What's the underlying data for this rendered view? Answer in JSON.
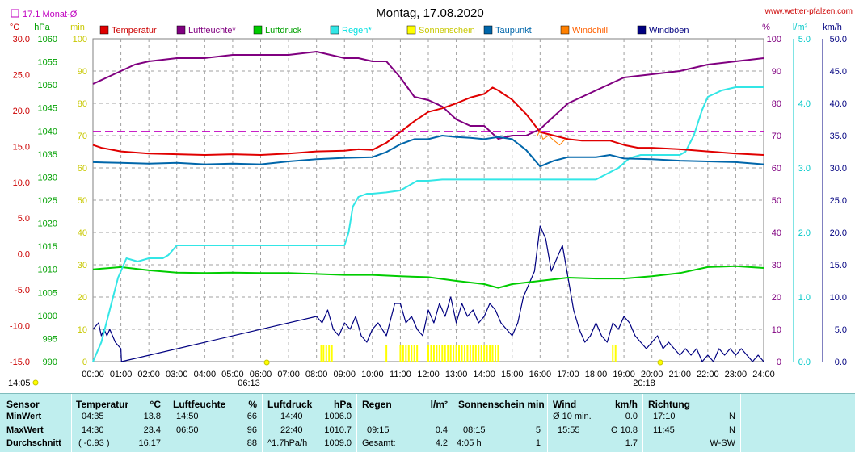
{
  "header": {
    "title": "Montag, 17.08.2020",
    "website": "www.wetter-pfalzen.com",
    "monthly_avg_label": "17.1 Monat-Ø",
    "sunrise_time": "06:13",
    "sunset_time": "20:18",
    "current_time": "14:05"
  },
  "colors": {
    "temperature": "#e00000",
    "humidity": "#800080",
    "pressure": "#00cc00",
    "rain": "#33e6e6",
    "sunshine": "#ffff00",
    "dewpoint": "#0066aa",
    "windchill": "#ff8000",
    "gusts": "#000080",
    "monthly_avg": "#c000c0"
  },
  "chart_data": {
    "type": "line",
    "xlabel": "",
    "x_ticks": [
      "00:00",
      "01:00",
      "02:00",
      "03:00",
      "04:00",
      "05:00",
      "06:00",
      "07:00",
      "08:00",
      "09:00",
      "10:00",
      "11:00",
      "12:00",
      "13:00",
      "14:00",
      "15:00",
      "16:00",
      "17:00",
      "18:00",
      "19:00",
      "20:00",
      "21:00",
      "22:00",
      "23:00",
      "24:00"
    ],
    "xlim": [
      0,
      24
    ],
    "grid": true,
    "legend_position": "top",
    "axes": {
      "temperature": {
        "unit": "°C",
        "range": [
          -15,
          30
        ],
        "ticks": [
          "30.0",
          "25.0",
          "20.0",
          "15.0",
          "10.0",
          "5.0",
          "0.0",
          "-5.0",
          "-10.0",
          "-15.0"
        ]
      },
      "pressure": {
        "unit": "hPa",
        "range": [
          990,
          1060
        ],
        "ticks": [
          "1060",
          "1055",
          "1050",
          "1045",
          "1040",
          "1035",
          "1030",
          "1025",
          "1020",
          "1015",
          "1010",
          "1005",
          "1000",
          "995",
          "990"
        ]
      },
      "sunshine_min": {
        "unit": "min",
        "range": [
          0,
          100
        ],
        "ticks": [
          "100",
          "90",
          "80",
          "70",
          "60",
          "50",
          "40",
          "30",
          "20",
          "10",
          "0"
        ]
      },
      "humidity": {
        "unit": "%",
        "range": [
          0,
          100
        ],
        "ticks": [
          "100",
          "90",
          "80",
          "70",
          "60",
          "50",
          "40",
          "30",
          "20",
          "10",
          "0"
        ]
      },
      "rain": {
        "unit": "l/m²",
        "range": [
          0,
          5
        ],
        "ticks": [
          "5.0",
          "4.0",
          "3.0",
          "2.0",
          "1.0",
          "0.0"
        ]
      },
      "wind": {
        "unit": "km/h",
        "range": [
          0,
          50
        ],
        "ticks": [
          "50.0",
          "45.0",
          "40.0",
          "35.0",
          "30.0",
          "25.0",
          "20.0",
          "15.0",
          "10.0",
          "5.0",
          "0.0"
        ]
      }
    },
    "monthly_avg_temp": 17.1,
    "series": [
      {
        "name": "Temperatur",
        "axis": "temperature",
        "x": [
          0,
          0.3,
          1,
          2,
          3,
          4,
          5,
          6,
          7,
          8,
          9,
          9.5,
          10,
          10.5,
          11,
          11.5,
          12,
          12.5,
          13,
          13.5,
          14,
          14.3,
          14.5,
          15,
          15.5,
          16,
          16.5,
          17,
          17.5,
          18,
          18.5,
          19,
          19.5,
          20,
          21,
          22,
          23,
          24
        ],
        "values": [
          15.2,
          14.8,
          14.3,
          14.0,
          13.9,
          13.8,
          13.9,
          13.8,
          14.0,
          14.3,
          14.4,
          14.6,
          14.5,
          15.5,
          17.0,
          18.5,
          19.8,
          20.3,
          21.0,
          21.8,
          22.3,
          23.2,
          22.8,
          21.5,
          19.5,
          17.0,
          16.5,
          16.0,
          15.8,
          15.8,
          15.8,
          15.2,
          14.8,
          14.8,
          14.6,
          14.3,
          14.0,
          13.8
        ]
      },
      {
        "name": "Luftfeuchte*",
        "axis": "humidity",
        "x": [
          0,
          0.5,
          1,
          1.5,
          2,
          3,
          4,
          5,
          6,
          7,
          8,
          8.5,
          9,
          9.5,
          10,
          10.5,
          11,
          11.5,
          12,
          12.5,
          13,
          13.5,
          14,
          14.5,
          15,
          15.5,
          16,
          16.5,
          17,
          17.5,
          18,
          18.5,
          19,
          20,
          21,
          22,
          23,
          24
        ],
        "values": [
          86,
          88,
          90,
          92,
          93,
          94,
          94,
          95,
          95,
          95,
          96,
          95,
          94,
          94,
          93,
          93,
          88,
          82,
          81,
          79,
          75,
          73,
          73,
          69,
          70,
          70,
          72,
          76,
          80,
          82,
          84,
          86,
          88,
          89,
          90,
          92,
          93,
          94
        ]
      },
      {
        "name": "Luftdruck",
        "axis": "pressure",
        "x": [
          0,
          1,
          2,
          3,
          4,
          5,
          6,
          7,
          8,
          9,
          10,
          11,
          12,
          13,
          14,
          14.5,
          15,
          16,
          17,
          18,
          19,
          20,
          21,
          22,
          23,
          24
        ],
        "values": [
          1010.0,
          1010.5,
          1009.8,
          1009.3,
          1009.2,
          1009.3,
          1009.2,
          1009.2,
          1009.0,
          1008.8,
          1008.8,
          1008.5,
          1008.3,
          1007.5,
          1006.8,
          1006.0,
          1006.8,
          1007.5,
          1008.2,
          1008.0,
          1008.0,
          1008.5,
          1009.2,
          1010.5,
          1010.7,
          1010.3
        ]
      },
      {
        "name": "Regen*",
        "axis": "rain",
        "x": [
          0,
          0.3,
          0.6,
          0.9,
          1.2,
          1.6,
          2.0,
          2.5,
          2.7,
          3.0,
          3.5,
          9.0,
          9.15,
          9.3,
          9.5,
          9.8,
          10.0,
          10.5,
          11.0,
          11.4,
          11.6,
          12.0,
          12.5,
          13,
          14,
          15,
          16,
          17,
          18,
          18.8,
          19.2,
          19.6,
          20,
          21,
          21.2,
          21.5,
          21.8,
          22.0,
          22.5,
          23,
          24
        ],
        "values": [
          0.0,
          0.3,
          0.8,
          1.3,
          1.6,
          1.55,
          1.6,
          1.6,
          1.65,
          1.8,
          1.8,
          1.8,
          2.0,
          2.4,
          2.55,
          2.6,
          2.6,
          2.62,
          2.65,
          2.75,
          2.8,
          2.8,
          2.82,
          2.82,
          2.82,
          2.82,
          2.82,
          2.82,
          2.82,
          3.0,
          3.15,
          3.2,
          3.2,
          3.2,
          3.25,
          3.5,
          3.9,
          4.1,
          4.2,
          4.25,
          4.25
        ]
      },
      {
        "name": "Sonnenschein",
        "axis": "sunshine_min",
        "x": [
          8.17,
          8.25,
          8.35,
          8.45,
          8.55,
          10.5,
          11.0,
          11.1,
          11.2,
          11.3,
          11.4,
          11.5,
          11.6,
          12.0,
          12.1,
          12.2,
          12.3,
          12.4,
          12.5,
          12.6,
          12.7,
          12.8,
          12.9,
          13.0,
          13.1,
          13.2,
          13.3,
          13.4,
          13.5,
          13.6,
          13.7,
          13.8,
          13.9,
          14.0,
          14.1,
          14.2,
          14.3,
          14.4,
          14.5,
          18.6,
          18.7
        ],
        "values": [
          5,
          5,
          5,
          5,
          5,
          5,
          5,
          5,
          5,
          5,
          5,
          5,
          5,
          5,
          5,
          5,
          5,
          5,
          5,
          5,
          5,
          5,
          5,
          5,
          5,
          5,
          5,
          5,
          5,
          5,
          5,
          5,
          5,
          5,
          5,
          5,
          5,
          5,
          5,
          5,
          5
        ]
      },
      {
        "name": "Taupunkt",
        "axis": "temperature",
        "x": [
          0,
          1,
          2,
          3,
          4,
          5,
          6,
          7,
          8,
          9,
          10,
          10.5,
          11,
          11.5,
          12,
          12.5,
          13,
          13.5,
          14,
          14.5,
          15,
          15.5,
          16,
          16.5,
          17,
          17.5,
          18,
          18.5,
          19,
          20,
          21,
          22,
          23,
          24
        ],
        "values": [
          12.8,
          12.7,
          12.6,
          12.7,
          12.5,
          12.6,
          12.5,
          12.9,
          13.2,
          13.4,
          13.5,
          14.2,
          15.3,
          16.0,
          16.0,
          16.5,
          16.3,
          16.2,
          16.0,
          16.3,
          16.0,
          14.5,
          12.2,
          13.0,
          13.5,
          13.5,
          13.5,
          13.8,
          13.3,
          13.2,
          13.0,
          12.9,
          12.8,
          12.5
        ]
      },
      {
        "name": "Windchill",
        "axis": "temperature",
        "x": [
          15.9,
          16.0,
          16.1,
          16.3,
          16.5,
          16.7,
          16.9
        ],
        "values": [
          16.5,
          17.2,
          16.0,
          16.5,
          15.8,
          15.2,
          16.0
        ]
      },
      {
        "name": "Windböen",
        "axis": "wind",
        "x": [
          0,
          0.2,
          0.3,
          0.4,
          0.5,
          0.6,
          0.8,
          1.0,
          1.02,
          8.0,
          8.2,
          8.4,
          8.6,
          8.8,
          9.0,
          9.2,
          9.4,
          9.6,
          9.8,
          10.0,
          10.2,
          10.5,
          10.8,
          11.0,
          11.2,
          11.4,
          11.6,
          11.8,
          12.0,
          12.2,
          12.4,
          12.6,
          12.8,
          13.0,
          13.2,
          13.4,
          13.6,
          13.8,
          14.0,
          14.2,
          14.4,
          14.6,
          14.8,
          15.0,
          15.2,
          15.4,
          15.6,
          15.8,
          16.0,
          16.2,
          16.4,
          16.6,
          16.8,
          17.0,
          17.2,
          17.4,
          17.6,
          17.8,
          18.0,
          18.2,
          18.4,
          18.6,
          18.8,
          19.0,
          19.2,
          19.4,
          19.6,
          19.8,
          20.0,
          20.2,
          20.4,
          20.6,
          20.8,
          21.0,
          21.2,
          21.4,
          21.6,
          21.8,
          22.0,
          22.2,
          22.4,
          22.6,
          22.8,
          23.0,
          23.2,
          23.4,
          23.6,
          23.8,
          24.0
        ],
        "values": [
          5,
          6,
          4,
          5,
          4,
          5,
          3,
          2,
          0,
          7,
          6,
          8,
          5,
          4,
          6,
          5,
          7,
          4,
          3,
          5,
          6,
          4,
          9,
          9,
          6,
          7,
          5,
          4,
          8,
          6,
          9,
          7,
          10,
          6,
          9,
          7,
          8,
          6,
          7,
          9,
          8,
          6,
          5,
          4,
          6,
          10,
          12,
          14,
          21,
          19,
          14,
          16,
          18,
          13,
          8,
          5,
          3,
          4,
          6,
          4,
          3,
          6,
          5,
          7,
          6,
          4,
          3,
          2,
          3,
          4,
          2,
          3,
          2,
          1,
          2,
          1,
          2,
          0,
          1,
          0,
          2,
          1,
          2,
          1,
          2,
          1,
          0,
          1,
          0
        ]
      }
    ]
  },
  "stats": {
    "headers": {
      "sensor": "Sensor",
      "temperatur": "Temperatur",
      "temp_unit": "°C",
      "luftfeuchte": "Luftfeuchte",
      "hum_unit": "%",
      "luftdruck": "Luftdruck",
      "press_unit": "hPa",
      "regen": "Regen",
      "rain_unit": "l/m²",
      "sonnenschein": "Sonnenschein min",
      "wind": "Wind",
      "wind_unit": "km/h",
      "richtung": "Richtung"
    },
    "rows": [
      {
        "label": "MinWert",
        "temp_time": "04:35",
        "temp_val": "13.8",
        "hum_time": "14:50",
        "hum_val": "66",
        "press_time": "14:40",
        "press_val": "1006.0",
        "rain_time": "",
        "rain_val": "",
        "sun_time": "",
        "sun_val": "",
        "wind_label": "Ø 10 min.",
        "wind_val": "0.0",
        "dir_time": "17:10",
        "dir_val": "N"
      },
      {
        "label": "MaxWert",
        "temp_time": "14:30",
        "temp_val": "23.4",
        "hum_time": "06:50",
        "hum_val": "96",
        "press_time": "22:40",
        "press_val": "1010.7",
        "rain_time": "09:15",
        "rain_val": "0.4",
        "sun_time": "08:15",
        "sun_val": "5",
        "wind_label": "15:55",
        "wind_val": "O 10.8",
        "dir_time": "11:45",
        "dir_val": "N"
      },
      {
        "label": "Durchschnitt",
        "temp_time": "( -0.93 )",
        "temp_val": "16.17",
        "hum_time": "",
        "hum_val": "88",
        "press_time": "^1.7hPa/h",
        "press_val": "1009.0",
        "rain_time": "Gesamt:",
        "rain_val": "4.2",
        "sun_time": "4:05 h",
        "sun_val": "1",
        "wind_label": "",
        "wind_val": "1.7",
        "dir_time": "",
        "dir_val": "W-SW"
      }
    ]
  }
}
